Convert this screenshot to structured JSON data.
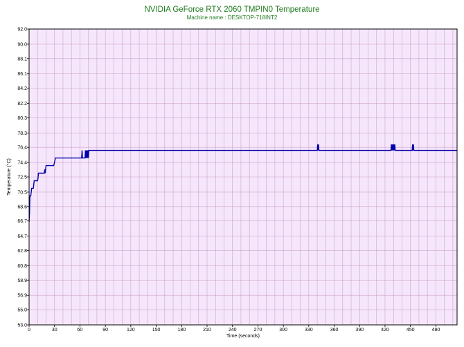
{
  "chart_data": {
    "type": "line",
    "title": "NVIDIA GeForce RTX 2060 TMPIN0 Temperature",
    "subtitle": "Machine name : DESKTOP-718INT2",
    "xlabel": "Time (seconds)",
    "ylabel": "Temperature (°C)",
    "xlim": [
      0,
      505
    ],
    "ylim": [
      53.0,
      92.0
    ],
    "x_ticks": [
      0,
      30,
      60,
      90,
      120,
      150,
      180,
      210,
      240,
      270,
      300,
      330,
      360,
      390,
      420,
      450,
      480
    ],
    "x_tick_labels": [
      "0",
      "30",
      "60",
      "90",
      "120",
      "150",
      "180",
      "210",
      "240",
      "270",
      "300",
      "330",
      "360",
      "390",
      "420",
      "450",
      "480"
    ],
    "y_ticks": [
      53.0,
      55.0,
      56.9,
      58.9,
      60.8,
      62.8,
      64.7,
      66.7,
      68.6,
      70.5,
      72.5,
      74.4,
      76.4,
      78.3,
      80.3,
      82.2,
      84.2,
      86.1,
      88.1,
      90.0,
      92.0
    ],
    "y_tick_labels": [
      "53.0",
      "55.0",
      "56.9",
      "58.9",
      "60.8",
      "62.8",
      "64.7",
      "66.7",
      "68.6",
      "70.5",
      "72.5",
      "74.4",
      "76.4",
      "78.3",
      "80.3",
      "82.2",
      "84.2",
      "86.1",
      "88.1",
      "90.0",
      "92.0"
    ],
    "grid": true,
    "colors": {
      "plot_background": "#f6e6fc",
      "grid": "#c9a5c9",
      "series": "#0000a8",
      "title": "#1e7a1e"
    },
    "series": [
      {
        "x": [
          0,
          0.5,
          0.8,
          1,
          2,
          3,
          4,
          5,
          6,
          9,
          9.5,
          10,
          10.5,
          11,
          12,
          18,
          18.5,
          19,
          20,
          21,
          22,
          29,
          30,
          31,
          32,
          61,
          62,
          62.5,
          63,
          64,
          65,
          66,
          66.5,
          67,
          67.5,
          68,
          68.5,
          69,
          69.5,
          70,
          70.5,
          71,
          72,
          340,
          340.5,
          341,
          341.5,
          342,
          427,
          427.5,
          428,
          428.5,
          429,
          429.5,
          430,
          430.5,
          431,
          431.5,
          432,
          452,
          452.5,
          453,
          453.5,
          454,
          505
        ],
        "y": [
          66.6,
          67.8,
          69.3,
          70.0,
          70.0,
          71.0,
          71.0,
          71.0,
          72.0,
          72.0,
          72.0,
          72.0,
          72.3,
          73.0,
          73.0,
          73.0,
          73.5,
          73.0,
          74.0,
          74.0,
          74.0,
          74.0,
          74.4,
          75.0,
          75.0,
          75.0,
          75.0,
          76.0,
          75.0,
          75.0,
          75.0,
          75.0,
          76.0,
          75.0,
          76.0,
          75.0,
          76.0,
          75.0,
          76.0,
          75.0,
          76.0,
          76.0,
          76.0,
          76.0,
          76.8,
          76.0,
          76.8,
          76.0,
          76.0,
          76.8,
          76.0,
          76.8,
          76.0,
          76.8,
          76.0,
          76.8,
          76.0,
          76.8,
          76.0,
          76.0,
          76.8,
          76.0,
          76.8,
          76.0,
          76.0
        ]
      }
    ]
  }
}
